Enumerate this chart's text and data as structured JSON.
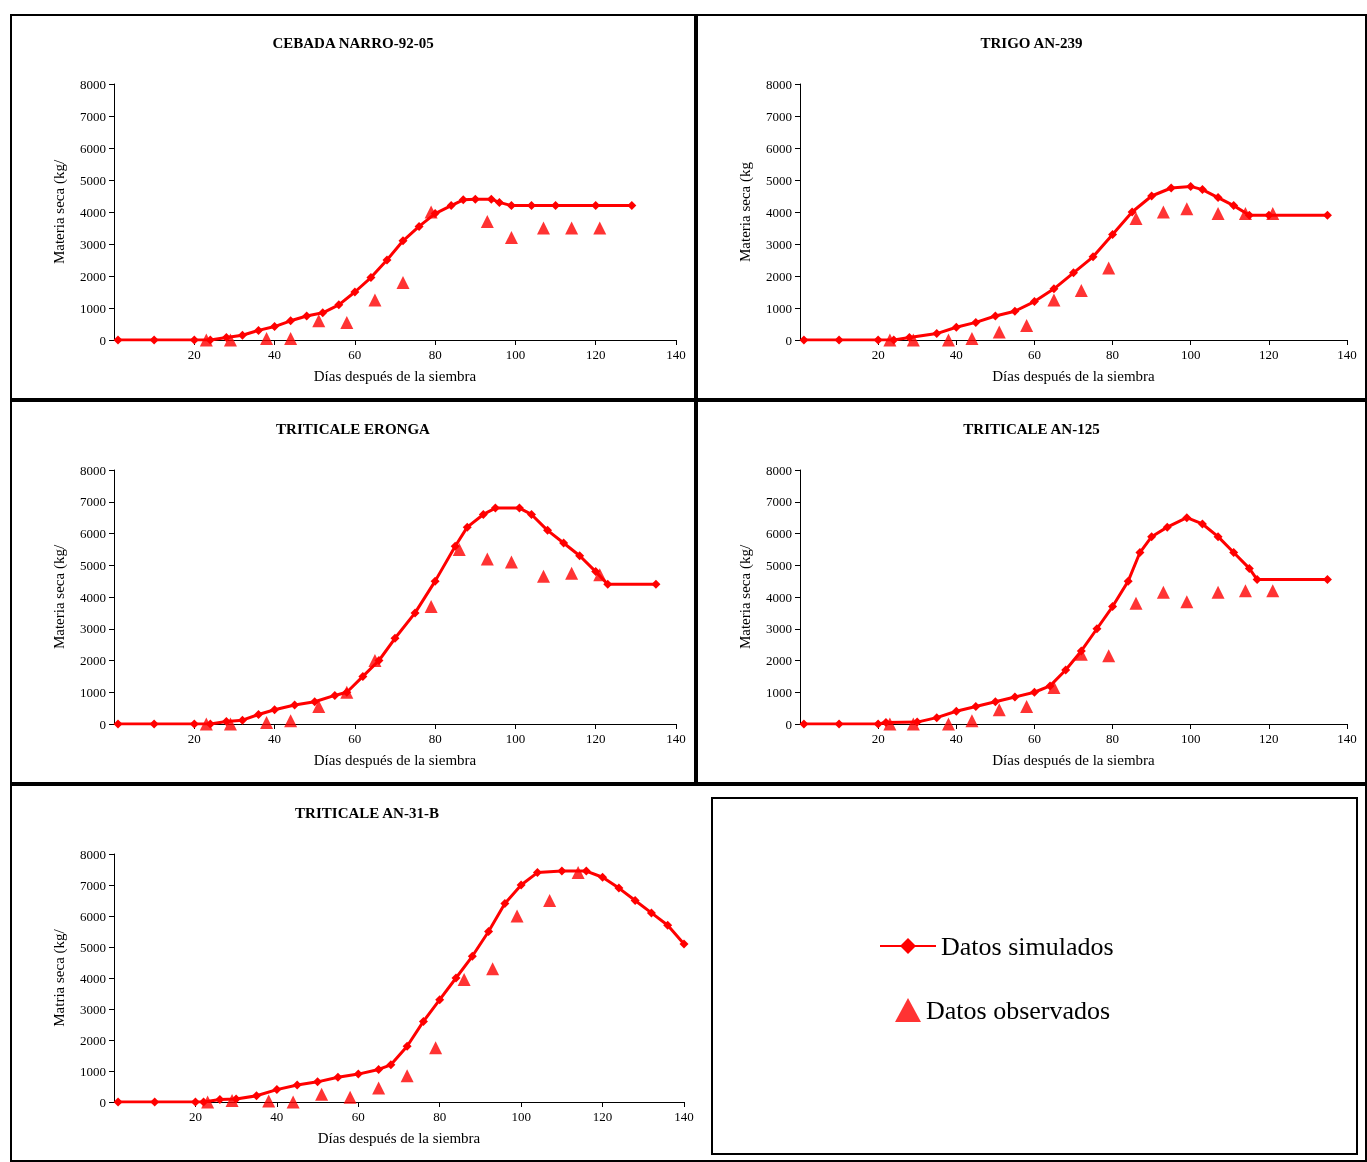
{
  "chart_data": [
    {
      "type": "line",
      "title": "CEBADA NARRO-92-05",
      "xlabel": "Días después de la siembra",
      "ylabel": "Materia seca (kg/",
      "xlim": [
        0,
        140
      ],
      "xticks": [
        20,
        40,
        60,
        80,
        100,
        120,
        140
      ],
      "ylim": [
        0,
        8000
      ],
      "yticks": [
        0,
        1000,
        2000,
        3000,
        4000,
        5000,
        6000,
        7000,
        8000
      ],
      "grid": false,
      "legend": false,
      "series": [
        {
          "type": "line",
          "marker": "diamond",
          "color": "#ff0000",
          "x": [
            1,
            10,
            20,
            24,
            28,
            32,
            36,
            40,
            44,
            48,
            52,
            56,
            60,
            64,
            68,
            72,
            76,
            80,
            84,
            87,
            90,
            94,
            96,
            99,
            104,
            110,
            120,
            129
          ],
          "values": [
            0,
            0,
            0,
            0,
            80,
            150,
            300,
            420,
            600,
            750,
            850,
            1100,
            1500,
            1950,
            2500,
            3100,
            3550,
            3950,
            4200,
            4380,
            4400,
            4400,
            4300,
            4200,
            4200,
            4200,
            4200,
            4200
          ]
        },
        {
          "type": "scatter",
          "marker": "triangle",
          "color": "#ff0000",
          "x": [
            23,
            29,
            38,
            44,
            51,
            58,
            65,
            72,
            79,
            93,
            99,
            107,
            114,
            121
          ],
          "values": [
            0,
            0,
            50,
            50,
            600,
            550,
            1250,
            1800,
            4000,
            3700,
            3200,
            3500,
            3500,
            3500
          ]
        }
      ]
    },
    {
      "type": "line",
      "title": "TRIGO AN-239",
      "xlabel": "Días después de la siembra",
      "ylabel": "Materia seca (kg",
      "xlim": [
        0,
        140
      ],
      "xticks": [
        20,
        40,
        60,
        80,
        100,
        120,
        140
      ],
      "ylim": [
        0,
        8000
      ],
      "yticks": [
        0,
        1000,
        2000,
        3000,
        4000,
        5000,
        6000,
        7000,
        8000
      ],
      "grid": false,
      "legend": false,
      "series": [
        {
          "type": "line",
          "marker": "diamond",
          "color": "#ff0000",
          "x": [
            1,
            10,
            20,
            24,
            28,
            35,
            40,
            45,
            50,
            55,
            60,
            65,
            70,
            75,
            80,
            85,
            90,
            95,
            100,
            103,
            107,
            111,
            115,
            120,
            135
          ],
          "values": [
            0,
            0,
            0,
            0,
            80,
            200,
            400,
            550,
            750,
            900,
            1200,
            1600,
            2100,
            2600,
            3300,
            4000,
            4500,
            4750,
            4800,
            4700,
            4450,
            4200,
            3900,
            3900,
            3900
          ]
        },
        {
          "type": "scatter",
          "marker": "triangle",
          "color": "#ff0000",
          "x": [
            23,
            29,
            38,
            44,
            51,
            58,
            65,
            72,
            79,
            86,
            93,
            99,
            107,
            114,
            121
          ],
          "values": [
            0,
            0,
            0,
            50,
            250,
            450,
            1250,
            1550,
            2250,
            3800,
            4000,
            4100,
            3950,
            3950,
            3950
          ]
        }
      ]
    },
    {
      "type": "line",
      "title": "TRITICALE ERONGA",
      "xlabel": "Días después de la siembra",
      "ylabel": "Materia seca (kg/",
      "xlim": [
        0,
        140
      ],
      "xticks": [
        20,
        40,
        60,
        80,
        100,
        120,
        140
      ],
      "ylim": [
        0,
        8000
      ],
      "yticks": [
        0,
        1000,
        2000,
        3000,
        4000,
        5000,
        6000,
        7000,
        8000
      ],
      "grid": false,
      "legend": false,
      "series": [
        {
          "type": "line",
          "marker": "diamond",
          "color": "#ff0000",
          "x": [
            1,
            10,
            20,
            24,
            28,
            32,
            36,
            40,
            45,
            50,
            55,
            58,
            62,
            66,
            70,
            75,
            80,
            85,
            88,
            92,
            95,
            101,
            104,
            108,
            112,
            116,
            120,
            123,
            135
          ],
          "values": [
            0,
            0,
            0,
            0,
            80,
            120,
            300,
            450,
            600,
            700,
            900,
            1000,
            1500,
            2000,
            2700,
            3500,
            4500,
            5600,
            6200,
            6600,
            6800,
            6800,
            6600,
            6100,
            5700,
            5300,
            4800,
            4400,
            4400
          ]
        },
        {
          "type": "scatter",
          "marker": "triangle",
          "color": "#ff0000",
          "x": [
            23,
            29,
            38,
            44,
            51,
            58,
            65,
            79,
            86,
            93,
            99,
            107,
            114,
            121
          ],
          "values": [
            0,
            0,
            50,
            100,
            550,
            1000,
            2000,
            3700,
            5500,
            5200,
            5100,
            4650,
            4750,
            4700
          ]
        }
      ]
    },
    {
      "type": "line",
      "title": "TRITICALE AN-125",
      "xlabel": "Días después de la siembra",
      "ylabel": "Materia seca (kg/",
      "xlim": [
        0,
        140
      ],
      "xticks": [
        20,
        40,
        60,
        80,
        100,
        120,
        140
      ],
      "ylim": [
        0,
        8000
      ],
      "yticks": [
        0,
        1000,
        2000,
        3000,
        4000,
        5000,
        6000,
        7000,
        8000
      ],
      "grid": false,
      "legend": false,
      "series": [
        {
          "type": "line",
          "marker": "diamond",
          "color": "#ff0000",
          "x": [
            1,
            10,
            20,
            22,
            30,
            35,
            40,
            45,
            50,
            55,
            60,
            64,
            68,
            72,
            76,
            80,
            84,
            87,
            90,
            94,
            99,
            103,
            107,
            111,
            115,
            117,
            135
          ],
          "values": [
            0,
            0,
            0,
            50,
            60,
            200,
            400,
            550,
            700,
            850,
            1000,
            1200,
            1700,
            2300,
            3000,
            3700,
            4500,
            5400,
            5900,
            6200,
            6500,
            6300,
            5900,
            5400,
            4900,
            4550,
            4550
          ]
        },
        {
          "type": "scatter",
          "marker": "triangle",
          "color": "#ff0000",
          "x": [
            23,
            29,
            38,
            44,
            51,
            58,
            65,
            72,
            79,
            86,
            93,
            99,
            107,
            114,
            121
          ],
          "values": [
            0,
            0,
            0,
            100,
            450,
            550,
            1150,
            2200,
            2150,
            3800,
            4150,
            3850,
            4150,
            4200,
            4200
          ]
        }
      ]
    },
    {
      "type": "line",
      "title": "TRITICALE AN-31-B",
      "xlabel": "Días después de la siembra",
      "ylabel": "Matria seca (kg/",
      "xlim": [
        0,
        140
      ],
      "xticks": [
        20,
        40,
        60,
        80,
        100,
        120,
        140
      ],
      "ylim": [
        0,
        8000
      ],
      "yticks": [
        0,
        1000,
        2000,
        3000,
        4000,
        5000,
        6000,
        7000,
        8000
      ],
      "grid": false,
      "legend": "right",
      "series": [
        {
          "type": "line",
          "name": "Datos simulados",
          "marker": "diamond",
          "color": "#ff0000",
          "x": [
            1,
            10,
            20,
            22,
            26,
            30,
            35,
            40,
            45,
            50,
            55,
            60,
            65,
            68,
            72,
            76,
            80,
            84,
            88,
            92,
            96,
            100,
            104,
            110,
            116,
            120,
            124,
            128,
            132,
            136,
            140
          ],
          "values": [
            0,
            0,
            0,
            0,
            80,
            100,
            200,
            400,
            550,
            650,
            800,
            900,
            1050,
            1200,
            1800,
            2600,
            3300,
            4000,
            4700,
            5500,
            6400,
            7000,
            7400,
            7450,
            7450,
            7250,
            6900,
            6500,
            6100,
            5700,
            5100
          ]
        },
        {
          "type": "scatter",
          "name": "Datos observados",
          "marker": "triangle",
          "color": "#ff0000",
          "x": [
            23,
            29,
            38,
            44,
            51,
            58,
            65,
            72,
            79,
            86,
            93,
            99,
            107,
            114
          ],
          "values": [
            0,
            50,
            30,
            0,
            250,
            150,
            450,
            850,
            1750,
            3950,
            4300,
            6000,
            6500,
            7400
          ]
        }
      ]
    }
  ]
}
